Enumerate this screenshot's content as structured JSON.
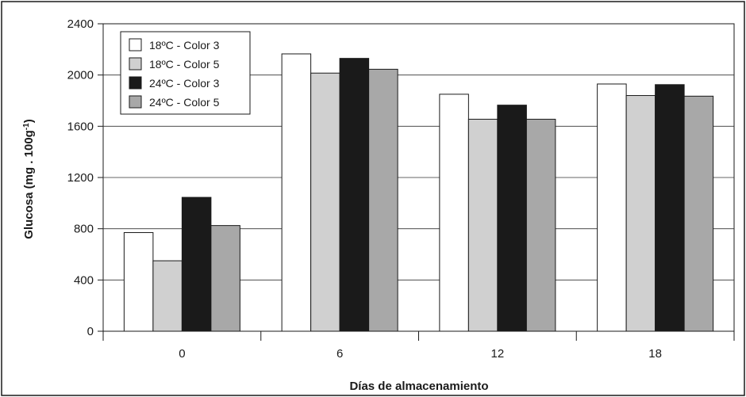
{
  "chart_data": {
    "type": "bar",
    "xlabel": "Días de almacenamiento",
    "ylabel": "Glucosa (mg . 100g",
    "ylabel_sup": "-1",
    "ylabel_end": ")",
    "ylim": [
      0,
      2400
    ],
    "yticks": [
      0,
      400,
      800,
      1200,
      1600,
      2000,
      2400
    ],
    "categories": [
      "0",
      "6",
      "12",
      "18"
    ],
    "legend_position": "top-left",
    "series": [
      {
        "name": "18ºC - Color 3",
        "color": "#ffffff",
        "values": [
          770,
          2165,
          1850,
          1930
        ]
      },
      {
        "name": "18ºC - Color 5",
        "color": "#d0d0d0",
        "values": [
          550,
          2015,
          1655,
          1840
        ]
      },
      {
        "name": "24ºC - Color 3",
        "color": "#1a1a1a",
        "values": [
          1045,
          2130,
          1765,
          1925
        ]
      },
      {
        "name": "24ºC - Color 5",
        "color": "#a8a8a8",
        "values": [
          825,
          2045,
          1655,
          1835
        ]
      }
    ]
  }
}
